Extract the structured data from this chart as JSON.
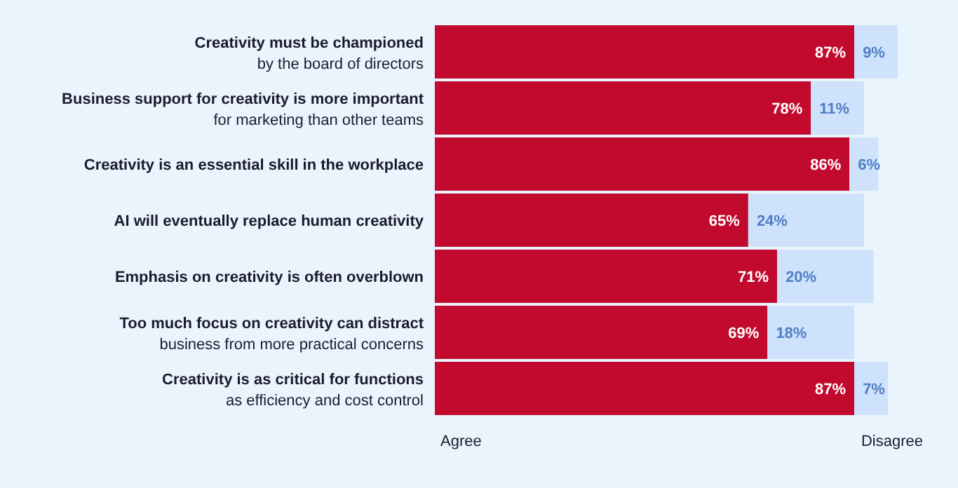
{
  "chart_data": {
    "type": "bar",
    "orientation": "horizontal",
    "stacked": true,
    "legend": "bottom",
    "categories": [
      "Creativity must be championed\nby the board of directors",
      "Business support for creativity is more important\nfor marketing than other teams",
      "Creativity is an essential skill in the workplace",
      "AI will eventually replace human creativity",
      "Emphasis on creativity is often overblown",
      "Too much focus on creativity can distract\nbusiness from more practical concerns",
      "Creativity is as critical for functions\nas efficiency and cost control"
    ],
    "series": [
      {
        "name": "Agree",
        "color": "#c20a2e",
        "values": [
          87,
          78,
          86,
          65,
          71,
          69,
          87
        ],
        "value_labels": [
          "87%",
          "78%",
          "86%",
          "65%",
          "71%",
          "69%",
          "87%"
        ]
      },
      {
        "name": "Disagree",
        "color": "#cfe2fb",
        "values": [
          9,
          11,
          6,
          24,
          20,
          18,
          7
        ],
        "value_labels": [
          "9%",
          "11%",
          "6%",
          "24%",
          "20%",
          "18%",
          "7%"
        ]
      }
    ]
  }
}
